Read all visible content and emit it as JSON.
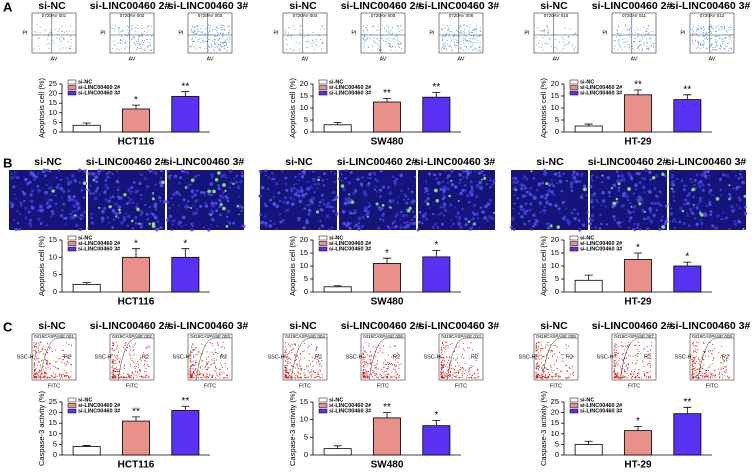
{
  "headers": [
    "si-NC",
    "si-LINC00460 2#",
    "si-LINC00460 3#"
  ],
  "panels": [
    {
      "label": "A",
      "x_axis": "AV",
      "y_axis": "PI",
      "ids": [
        [
          "0720AV 001",
          "0720AV 002",
          "0720AV 003"
        ],
        [
          "0720AV 004",
          "0720AV 005",
          "0720AV 006"
        ],
        [
          "0720AV 010",
          "0720AV 011",
          "0720AV 012"
        ]
      ]
    },
    {
      "label": "B"
    },
    {
      "label": "C",
      "x_axis": "FITC",
      "y_axis": "SSC-H",
      "gate": "R2",
      "ids": [
        [
          "0419CASPASE 001",
          "0419CASPASE 002",
          "0419CASPASE 003"
        ],
        [
          "0419CASPASE 004",
          "0419CASPASE 008",
          "0419CASPASE 013"
        ],
        [
          "0419CASPASE 005",
          "0419CASPASE 007",
          "0419CASPASE 009"
        ]
      ]
    }
  ],
  "chart_data": [
    {
      "type": "bar",
      "xlabel": "HCT116",
      "ylabel": "Apoptosis cell (%)",
      "categories": [
        "si-NC",
        "si-LINC00460 2#",
        "si-LINC00460 3#"
      ],
      "colors": [
        "#ffffff",
        "#e8918a",
        "#5a32f5"
      ],
      "values": [
        3.5,
        12,
        18.5
      ],
      "errors": [
        1.2,
        2,
        2.5
      ],
      "annotations": [
        null,
        "*",
        "**"
      ],
      "ylim": [
        0,
        25
      ],
      "yticks": [
        0,
        5,
        10,
        15,
        20,
        25
      ]
    },
    {
      "type": "bar",
      "xlabel": "SW480",
      "ylabel": "Apoptosis cell (%)",
      "categories": [
        "si-NC",
        "si-LINC00460 2#",
        "si-LINC00460 3#"
      ],
      "colors": [
        "#ffffff",
        "#e8918a",
        "#5a32f5"
      ],
      "values": [
        3,
        12.5,
        14.5
      ],
      "errors": [
        1,
        1.5,
        2
      ],
      "annotations": [
        null,
        "**",
        "**"
      ],
      "ylim": [
        0,
        20
      ],
      "yticks": [
        0,
        5,
        10,
        15,
        20
      ]
    },
    {
      "type": "bar",
      "xlabel": "HT-29",
      "ylabel": "Apoptosis cell (%)",
      "categories": [
        "si-NC",
        "si-LINC00460 2#",
        "si-LINC00460 3#"
      ],
      "colors": [
        "#ffffff",
        "#e8918a",
        "#5a32f5"
      ],
      "values": [
        2.5,
        15.5,
        13.5
      ],
      "errors": [
        0.8,
        2,
        2
      ],
      "annotations": [
        null,
        "**",
        "**"
      ],
      "ylim": [
        0,
        20
      ],
      "yticks": [
        0,
        5,
        10,
        15,
        20
      ]
    },
    {
      "type": "bar",
      "xlabel": "HCT116",
      "ylabel": "Apoptosis cell (%)",
      "categories": [
        "si-NC",
        "si-LINC00460 2#",
        "si-LINC00460 3#"
      ],
      "colors": [
        "#ffffff",
        "#e8918a",
        "#5a32f5"
      ],
      "values": [
        2.2,
        10,
        10
      ],
      "errors": [
        0.5,
        2.5,
        2.5
      ],
      "annotations": [
        null,
        "*",
        "*"
      ],
      "ylim": [
        0,
        15
      ],
      "yticks": [
        0,
        5,
        10,
        15
      ]
    },
    {
      "type": "bar",
      "xlabel": "SW480",
      "ylabel": "Apoptosis cell (%)",
      "categories": [
        "si-NC",
        "si-LINC00460 2#",
        "si-LINC00460 3#"
      ],
      "colors": [
        "#ffffff",
        "#e8918a",
        "#5a32f5"
      ],
      "values": [
        2,
        11,
        13.5
      ],
      "errors": [
        0.4,
        2,
        2.5
      ],
      "annotations": [
        null,
        "*",
        "*"
      ],
      "ylim": [
        0,
        20
      ],
      "yticks": [
        0,
        5,
        10,
        15,
        20
      ]
    },
    {
      "type": "bar",
      "xlabel": "HT-29",
      "ylabel": "Apoptosis cell (%)",
      "categories": [
        "si-NC",
        "si-LINC00460 2#",
        "si-LINC00460 3#"
      ],
      "colors": [
        "#ffffff",
        "#e8918a",
        "#5a32f5"
      ],
      "values": [
        4.5,
        12.5,
        10
      ],
      "errors": [
        2,
        2.5,
        1.5
      ],
      "annotations": [
        null,
        "*",
        "*"
      ],
      "ylim": [
        0,
        20
      ],
      "yticks": [
        0,
        5,
        10,
        15,
        20
      ]
    },
    {
      "type": "bar",
      "xlabel": "HCT116",
      "ylabel": "Caspase-3 activity (%)",
      "categories": [
        "si-NC",
        "si-LINC00460 2#",
        "si-LINC00460 3#"
      ],
      "colors": [
        "#ffffff",
        "#e8918a",
        "#5a32f5"
      ],
      "values": [
        4,
        16,
        21
      ],
      "errors": [
        0.5,
        2,
        2
      ],
      "annotations": [
        null,
        "**",
        "**"
      ],
      "ylim": [
        0,
        25
      ],
      "yticks": [
        0,
        5,
        10,
        15,
        20,
        25
      ]
    },
    {
      "type": "bar",
      "xlabel": "SW480",
      "ylabel": "Caspase-3 activity (%)",
      "categories": [
        "si-NC",
        "si-LINC00460 2#",
        "si-LINC00460 3#"
      ],
      "colors": [
        "#ffffff",
        "#e8918a",
        "#5a32f5"
      ],
      "values": [
        1.8,
        10.5,
        8.3
      ],
      "errors": [
        0.8,
        1.5,
        1.5
      ],
      "annotations": [
        null,
        "**",
        "*"
      ],
      "ylim": [
        0,
        15
      ],
      "yticks": [
        0,
        5,
        10,
        15
      ]
    },
    {
      "type": "bar",
      "xlabel": "HT-29",
      "ylabel": "Caspase-3 activity (%)",
      "categories": [
        "si-NC",
        "si-LINC00460 2#",
        "si-LINC00460 3#"
      ],
      "colors": [
        "#ffffff",
        "#e8918a",
        "#5a32f5"
      ],
      "values": [
        5,
        11.5,
        19.5
      ],
      "errors": [
        1.5,
        2,
        3
      ],
      "annotations": [
        null,
        "*",
        "**"
      ],
      "ylim": [
        0,
        25
      ],
      "yticks": [
        0,
        5,
        10,
        15,
        20,
        25
      ]
    }
  ]
}
